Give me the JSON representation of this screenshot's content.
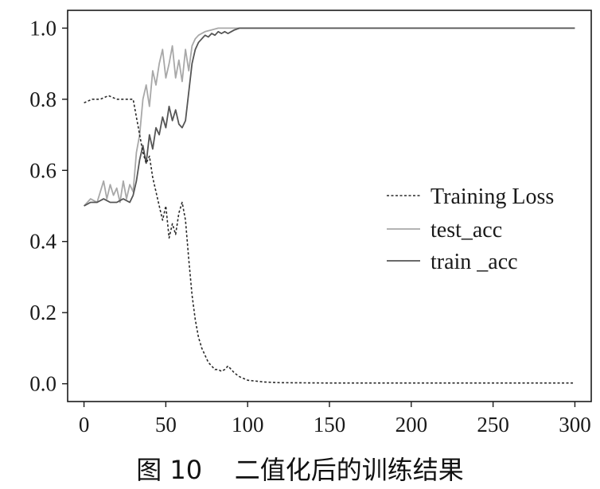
{
  "caption": "图 10    二值化后的训练结果",
  "chart_data": {
    "type": "line",
    "title": "",
    "xlabel": "",
    "ylabel": "",
    "xlim": [
      -10,
      310
    ],
    "ylim": [
      -0.05,
      1.05
    ],
    "xticks": [
      "0",
      "50",
      "100",
      "150",
      "200",
      "250",
      "300"
    ],
    "yticks": [
      "0.0",
      "0.2",
      "0.4",
      "0.6",
      "0.8",
      "1.0"
    ],
    "grid": false,
    "legend_position": "center-right",
    "series": [
      {
        "name": "Training Loss",
        "color": "#2a2a2a",
        "dash": "dashed",
        "x": [
          0,
          5,
          10,
          15,
          20,
          25,
          28,
          30,
          32,
          34,
          36,
          38,
          40,
          42,
          44,
          46,
          48,
          50,
          52,
          54,
          56,
          58,
          60,
          62,
          64,
          66,
          68,
          70,
          72,
          74,
          76,
          78,
          80,
          82,
          84,
          86,
          88,
          90,
          92,
          95,
          100,
          110,
          120,
          150,
          200,
          250,
          300
        ],
        "y": [
          0.79,
          0.8,
          0.8,
          0.81,
          0.8,
          0.8,
          0.8,
          0.8,
          0.75,
          0.7,
          0.65,
          0.62,
          0.64,
          0.58,
          0.54,
          0.5,
          0.46,
          0.5,
          0.41,
          0.45,
          0.42,
          0.48,
          0.51,
          0.46,
          0.35,
          0.25,
          0.18,
          0.13,
          0.1,
          0.08,
          0.06,
          0.05,
          0.04,
          0.04,
          0.035,
          0.04,
          0.05,
          0.04,
          0.03,
          0.02,
          0.01,
          0.005,
          0.003,
          0.002,
          0.002,
          0.002,
          0.002
        ]
      },
      {
        "name": "test_acc",
        "color": "#a8a8a8",
        "dash": "solid",
        "x": [
          0,
          4,
          8,
          12,
          14,
          16,
          18,
          20,
          22,
          24,
          26,
          28,
          30,
          32,
          34,
          36,
          38,
          40,
          42,
          44,
          46,
          48,
          50,
          52,
          54,
          56,
          58,
          60,
          62,
          64,
          66,
          68,
          70,
          74,
          78,
          82,
          86,
          90,
          95,
          100,
          150,
          200,
          250,
          300
        ],
        "y": [
          0.5,
          0.52,
          0.51,
          0.57,
          0.52,
          0.56,
          0.53,
          0.55,
          0.51,
          0.57,
          0.52,
          0.56,
          0.54,
          0.65,
          0.7,
          0.8,
          0.84,
          0.78,
          0.88,
          0.84,
          0.9,
          0.94,
          0.86,
          0.9,
          0.95,
          0.86,
          0.91,
          0.85,
          0.94,
          0.88,
          0.95,
          0.97,
          0.98,
          0.99,
          0.995,
          1.0,
          1.0,
          1.0,
          1.0,
          1.0,
          1.0,
          1.0,
          1.0,
          1.0
        ]
      },
      {
        "name": "train _acc",
        "color": "#555555",
        "dash": "solid",
        "x": [
          0,
          4,
          8,
          12,
          16,
          20,
          24,
          28,
          30,
          32,
          34,
          36,
          38,
          40,
          42,
          44,
          46,
          48,
          50,
          52,
          54,
          56,
          58,
          60,
          62,
          64,
          66,
          68,
          70,
          72,
          74,
          76,
          78,
          80,
          82,
          84,
          86,
          88,
          90,
          92,
          95,
          100,
          150,
          200,
          250,
          300
        ],
        "y": [
          0.5,
          0.51,
          0.51,
          0.52,
          0.51,
          0.51,
          0.52,
          0.51,
          0.53,
          0.57,
          0.63,
          0.67,
          0.62,
          0.7,
          0.66,
          0.72,
          0.7,
          0.75,
          0.72,
          0.78,
          0.74,
          0.77,
          0.73,
          0.72,
          0.74,
          0.82,
          0.9,
          0.94,
          0.96,
          0.97,
          0.98,
          0.975,
          0.985,
          0.98,
          0.99,
          0.985,
          0.99,
          0.985,
          0.99,
          0.995,
          1.0,
          1.0,
          1.0,
          1.0,
          1.0,
          1.0
        ]
      }
    ]
  }
}
